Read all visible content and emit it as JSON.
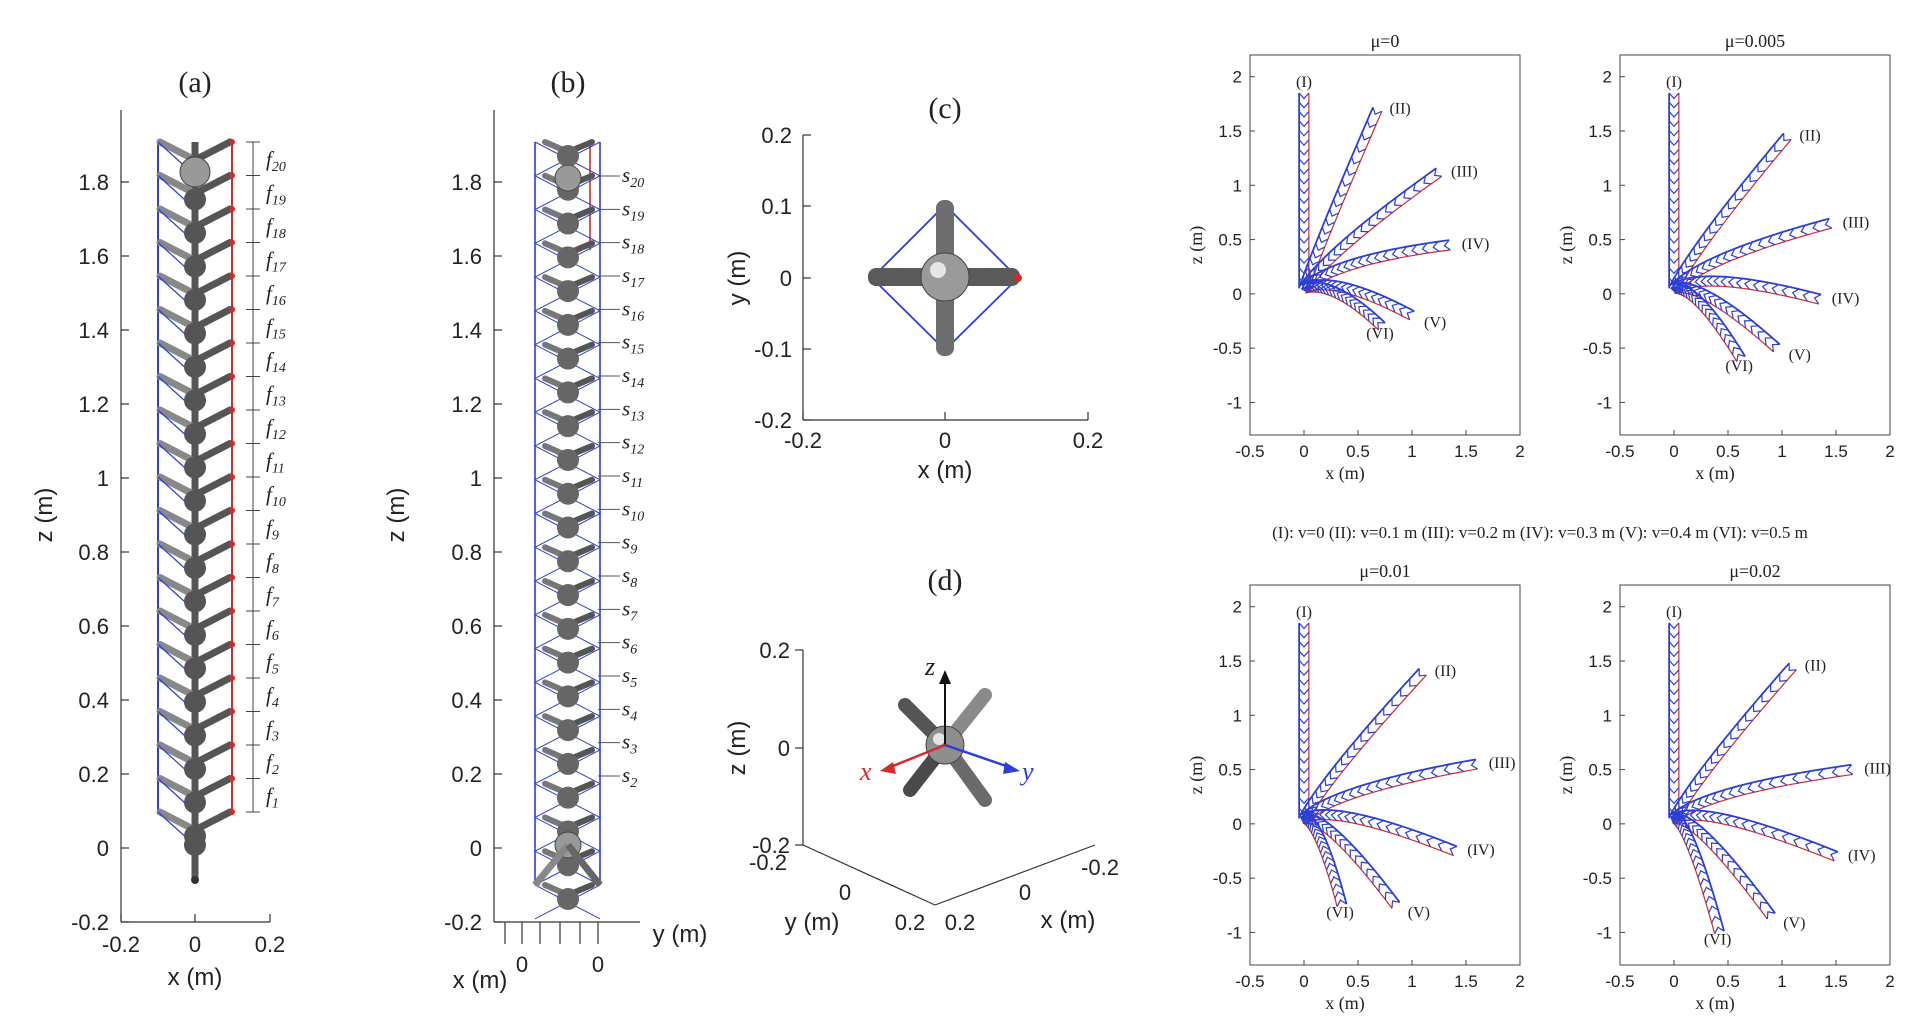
{
  "figure": {
    "panel_a": {
      "title": "(a)",
      "xlabel": "x (m)",
      "ylabel": "z (m)",
      "xticks": [
        "-0.2",
        "0",
        "0.2"
      ],
      "yticks": [
        "-0.2",
        "0",
        "0.2",
        "0.4",
        "0.6",
        "0.8",
        "1",
        "1.2",
        "1.4",
        "1.6",
        "1.8"
      ],
      "labels": [
        {
          "base": "f",
          "sub": "20"
        },
        {
          "base": "f",
          "sub": "19"
        },
        {
          "base": "f",
          "sub": "18"
        },
        {
          "base": "f",
          "sub": "17"
        },
        {
          "base": "f",
          "sub": "16"
        },
        {
          "base": "f",
          "sub": "15"
        },
        {
          "base": "f",
          "sub": "14"
        },
        {
          "base": "f",
          "sub": "13"
        },
        {
          "base": "f",
          "sub": "12"
        },
        {
          "base": "f",
          "sub": "11"
        },
        {
          "base": "f",
          "sub": "10"
        },
        {
          "base": "f",
          "sub": "9"
        },
        {
          "base": "f",
          "sub": "8"
        },
        {
          "base": "f",
          "sub": "7"
        },
        {
          "base": "f",
          "sub": "6"
        },
        {
          "base": "f",
          "sub": "5"
        },
        {
          "base": "f",
          "sub": "4"
        },
        {
          "base": "f",
          "sub": "3"
        },
        {
          "base": "f",
          "sub": "2"
        },
        {
          "base": "f",
          "sub": "1"
        }
      ]
    },
    "panel_b": {
      "title": "(b)",
      "xlabel": "x (m)",
      "ylabel": "z (m)",
      "ylabel2": "y (m)",
      "xticks": [
        "0",
        "0"
      ],
      "yticks": [
        "-0.2",
        "0",
        "0.2",
        "0.4",
        "0.6",
        "0.8",
        "1",
        "1.2",
        "1.4",
        "1.6",
        "1.8"
      ],
      "labels": [
        {
          "base": "s",
          "sub": "20"
        },
        {
          "base": "s",
          "sub": "19"
        },
        {
          "base": "s",
          "sub": "18"
        },
        {
          "base": "s",
          "sub": "17"
        },
        {
          "base": "s",
          "sub": "16"
        },
        {
          "base": "s",
          "sub": "15"
        },
        {
          "base": "s",
          "sub": "14"
        },
        {
          "base": "s",
          "sub": "13"
        },
        {
          "base": "s",
          "sub": "12"
        },
        {
          "base": "s",
          "sub": "11"
        },
        {
          "base": "s",
          "sub": "10"
        },
        {
          "base": "s",
          "sub": "9"
        },
        {
          "base": "s",
          "sub": "8"
        },
        {
          "base": "s",
          "sub": "7"
        },
        {
          "base": "s",
          "sub": "6"
        },
        {
          "base": "s",
          "sub": "5"
        },
        {
          "base": "s",
          "sub": "4"
        },
        {
          "base": "s",
          "sub": "3"
        },
        {
          "base": "s",
          "sub": "2"
        }
      ]
    },
    "panel_c": {
      "title": "(c)",
      "xlabel": "x (m)",
      "ylabel": "y (m)",
      "xticks": [
        "-0.2",
        "0",
        "0.2"
      ],
      "yticks": [
        "0.2",
        "0.1",
        "0",
        "-0.1",
        "-0.2"
      ]
    },
    "panel_d": {
      "title": "(d)",
      "zlabel": "z (m)",
      "ylabel": "y (m)",
      "xlabel": "x (m)",
      "zticks": [
        "0.2",
        "0",
        "-0.2"
      ],
      "yticks": [
        "-0.2",
        "0",
        "0.2"
      ],
      "xticks": [
        "0.2",
        "0",
        "-0.2"
      ],
      "axis_x": "x",
      "axis_y": "y",
      "axis_z": "z"
    },
    "legend_line": "(I): v=0  (II): v=0.1 m  (III): v=0.2 m  (IV): v=0.3 m  (V): v=0.4 m  (VI): v=0.5 m",
    "subplots": [
      {
        "title": "μ=0",
        "xlabel": "x (m)",
        "ylabel": "z (m)"
      },
      {
        "title": "μ=0.005",
        "xlabel": "x (m)",
        "ylabel": "z (m)"
      },
      {
        "title": "μ=0.01",
        "xlabel": "x (m)",
        "ylabel": "z (m)"
      },
      {
        "title": "μ=0.02",
        "xlabel": "x (m)",
        "ylabel": "z (m)"
      }
    ],
    "subplot_xticks": [
      "-0.5",
      "0",
      "0.5",
      "1",
      "1.5",
      "2"
    ],
    "subplot_yticks": [
      "2",
      "1.5",
      "1",
      "0.5",
      "0",
      "-0.5",
      "-1"
    ],
    "curve_labels": [
      "(I)",
      "(II)",
      "(III)",
      "(IV)",
      "(V)",
      "(VI)"
    ],
    "colors": {
      "blue": "#2b3fd6",
      "red": "#d42a2a",
      "gray": "#8c8c8c",
      "dark": "#333333"
    }
  },
  "chart_data": [
    {
      "type": "line",
      "title": "μ=0",
      "xlabel": "x (m)",
      "ylabel": "z (m)",
      "xlim": [
        -0.5,
        2
      ],
      "ylim": [
        -1.3,
        2.2
      ],
      "series": [
        {
          "name": "(I)",
          "tip": [
            0.0,
            1.85
          ]
        },
        {
          "name": "(II)",
          "tip": [
            0.68,
            1.7
          ]
        },
        {
          "name": "(III)",
          "tip": [
            1.25,
            1.12
          ]
        },
        {
          "name": "(IV)",
          "tip": [
            1.35,
            0.45
          ]
        },
        {
          "name": "(V)",
          "tip": [
            1.0,
            -0.2
          ]
        },
        {
          "name": "(VI)",
          "tip": [
            0.72,
            -0.3
          ]
        }
      ]
    },
    {
      "type": "line",
      "title": "μ=0.005",
      "xlabel": "x (m)",
      "ylabel": "z (m)",
      "xlim": [
        -0.5,
        2
      ],
      "ylim": [
        -1.3,
        2.2
      ],
      "series": [
        {
          "name": "(I)",
          "tip": [
            0.0,
            1.85
          ]
        },
        {
          "name": "(II)",
          "tip": [
            1.05,
            1.45
          ]
        },
        {
          "name": "(III)",
          "tip": [
            1.45,
            0.65
          ]
        },
        {
          "name": "(IV)",
          "tip": [
            1.35,
            -0.05
          ]
        },
        {
          "name": "(V)",
          "tip": [
            0.95,
            -0.5
          ]
        },
        {
          "name": "(VI)",
          "tip": [
            0.62,
            -0.6
          ]
        }
      ]
    },
    {
      "type": "line",
      "title": "μ=0.01",
      "xlabel": "x (m)",
      "ylabel": "z (m)",
      "xlim": [
        -0.5,
        2
      ],
      "ylim": [
        -1.3,
        2.2
      ],
      "series": [
        {
          "name": "(I)",
          "tip": [
            0.0,
            1.85
          ]
        },
        {
          "name": "(II)",
          "tip": [
            1.1,
            1.4
          ]
        },
        {
          "name": "(III)",
          "tip": [
            1.6,
            0.55
          ]
        },
        {
          "name": "(IV)",
          "tip": [
            1.4,
            -0.25
          ]
        },
        {
          "name": "(V)",
          "tip": [
            0.85,
            -0.75
          ]
        },
        {
          "name": "(VI)",
          "tip": [
            0.35,
            -0.75
          ]
        }
      ]
    },
    {
      "type": "line",
      "title": "μ=0.02",
      "xlabel": "x (m)",
      "ylabel": "z (m)",
      "xlim": [
        -0.5,
        2
      ],
      "ylim": [
        -1.3,
        2.2
      ],
      "series": [
        {
          "name": "(I)",
          "tip": [
            0.0,
            1.85
          ]
        },
        {
          "name": "(II)",
          "tip": [
            1.1,
            1.45
          ]
        },
        {
          "name": "(III)",
          "tip": [
            1.65,
            0.5
          ]
        },
        {
          "name": "(IV)",
          "tip": [
            1.5,
            -0.3
          ]
        },
        {
          "name": "(V)",
          "tip": [
            0.9,
            -0.85
          ]
        },
        {
          "name": "(VI)",
          "tip": [
            0.42,
            -1.0
          ]
        }
      ]
    }
  ]
}
